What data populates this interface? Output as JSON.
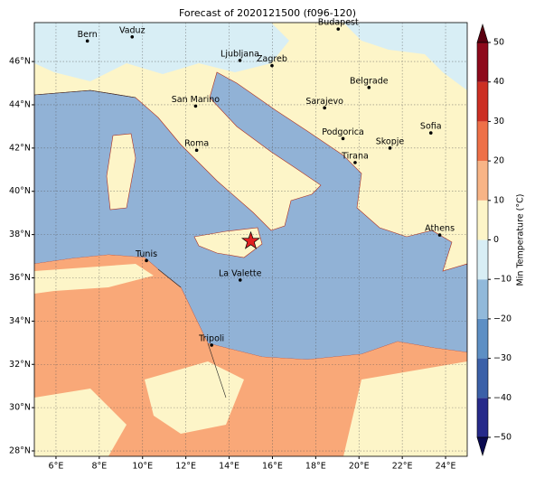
{
  "title": "Forecast of 2020121500 (f096-120)",
  "map": {
    "lonlim": [
      5,
      25
    ],
    "latlim": [
      27.75,
      47.8
    ],
    "lonticks": [
      {
        "value": 6,
        "label": "6°E"
      },
      {
        "value": 8,
        "label": "8°E"
      },
      {
        "value": 10,
        "label": "10°E"
      },
      {
        "value": 12,
        "label": "12°E"
      },
      {
        "value": 14,
        "label": "14°E"
      },
      {
        "value": 16,
        "label": "16°E"
      },
      {
        "value": 18,
        "label": "18°E"
      },
      {
        "value": 20,
        "label": "20°E"
      },
      {
        "value": 22,
        "label": "22°E"
      },
      {
        "value": 24,
        "label": "24°E"
      }
    ],
    "latticks": [
      {
        "value": 28,
        "label": "28°N"
      },
      {
        "value": 30,
        "label": "30°N"
      },
      {
        "value": 32,
        "label": "32°N"
      },
      {
        "value": 34,
        "label": "34°N"
      },
      {
        "value": 36,
        "label": "36°N"
      },
      {
        "value": 38,
        "label": "38°N"
      },
      {
        "value": 40,
        "label": "40°N"
      },
      {
        "value": 42,
        "label": "42°N"
      },
      {
        "value": 44,
        "label": "44°N"
      },
      {
        "value": 46,
        "label": "46°N"
      }
    ],
    "grid": true,
    "cities": [
      {
        "name": "Bern",
        "lon": 7.45,
        "lat": 46.95
      },
      {
        "name": "Vaduz",
        "lon": 9.52,
        "lat": 47.14
      },
      {
        "name": "Budapest",
        "lon": 19.04,
        "lat": 47.5
      },
      {
        "name": "Ljubljana",
        "lon": 14.5,
        "lat": 46.05
      },
      {
        "name": "Zagreb",
        "lon": 15.98,
        "lat": 45.81
      },
      {
        "name": "Belgrade",
        "lon": 20.46,
        "lat": 44.8
      },
      {
        "name": "San Marino",
        "lon": 12.45,
        "lat": 43.94
      },
      {
        "name": "Sarajevo",
        "lon": 18.41,
        "lat": 43.86
      },
      {
        "name": "Sofia",
        "lon": 23.32,
        "lat": 42.7
      },
      {
        "name": "Roma",
        "lon": 12.5,
        "lat": 41.9
      },
      {
        "name": "Podgorica",
        "lon": 19.26,
        "lat": 42.44
      },
      {
        "name": "Skopje",
        "lon": 21.43,
        "lat": 42.0
      },
      {
        "name": "Tirana",
        "lon": 19.82,
        "lat": 41.33
      },
      {
        "name": "Athens",
        "lon": 23.73,
        "lat": 37.98
      },
      {
        "name": "Tunis",
        "lon": 10.18,
        "lat": 36.8
      },
      {
        "name": "La Valette",
        "lon": 14.51,
        "lat": 35.9
      },
      {
        "name": "Tripoli",
        "lon": 13.19,
        "lat": 32.89
      }
    ],
    "marker": {
      "lon": 15.0,
      "lat": 37.7,
      "color": "#e02020"
    }
  },
  "colorbar": {
    "label": "Min Temperature (°C)",
    "levels": [
      -50,
      -40,
      -30,
      -20,
      -10,
      0,
      10,
      20,
      30,
      40,
      50
    ],
    "colors": [
      "#262a8a",
      "#3b60a8",
      "#5d8fc4",
      "#91b9da",
      "#d8eef5",
      "#fdf5c8",
      "#f8b486",
      "#ee7048",
      "#cc2f24",
      "#8e0a1c"
    ],
    "extend_colors": [
      "#0a0a50",
      "#5a0010"
    ],
    "ticks": [
      {
        "value": 50,
        "label": "50"
      },
      {
        "value": 40,
        "label": "40"
      },
      {
        "value": 30,
        "label": "30"
      },
      {
        "value": 20,
        "label": "20"
      },
      {
        "value": 10,
        "label": "10"
      },
      {
        "value": 0,
        "label": "0"
      },
      {
        "value": -10,
        "label": "−10"
      },
      {
        "value": -20,
        "label": "−20"
      },
      {
        "value": -30,
        "label": "−30"
      },
      {
        "value": -40,
        "label": "−40"
      },
      {
        "value": -50,
        "label": "−50"
      }
    ]
  }
}
